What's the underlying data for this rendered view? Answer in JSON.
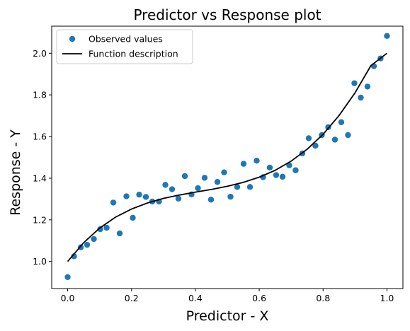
{
  "chart_data": {
    "type": "scatter",
    "title": "Predictor vs Response plot",
    "xlabel": "Predictor - X",
    "ylabel": "Response - Y",
    "xlim": [
      -0.05,
      1.05
    ],
    "ylim": [
      0.87,
      2.13
    ],
    "xticks": [
      0.0,
      0.2,
      0.4,
      0.6,
      0.8,
      1.0
    ],
    "xtick_labels": [
      "0.0",
      "0.2",
      "0.4",
      "0.6",
      "0.8",
      "1.0"
    ],
    "yticks": [
      1.0,
      1.2,
      1.4,
      1.6,
      1.8,
      2.0
    ],
    "ytick_labels": [
      "1.0",
      "1.2",
      "1.4",
      "1.6",
      "1.8",
      "2.0"
    ],
    "grid": false,
    "legend_position": "top-left",
    "series": [
      {
        "name": "Observed values",
        "kind": "scatter",
        "color": "#1f77b4",
        "x": [
          0.0,
          0.02,
          0.041,
          0.061,
          0.082,
          0.102,
          0.122,
          0.143,
          0.163,
          0.184,
          0.204,
          0.224,
          0.245,
          0.265,
          0.286,
          0.306,
          0.327,
          0.347,
          0.367,
          0.388,
          0.408,
          0.429,
          0.449,
          0.469,
          0.49,
          0.51,
          0.531,
          0.551,
          0.571,
          0.592,
          0.612,
          0.633,
          0.653,
          0.673,
          0.694,
          0.714,
          0.735,
          0.755,
          0.776,
          0.796,
          0.816,
          0.837,
          0.857,
          0.878,
          0.898,
          0.918,
          0.939,
          0.959,
          0.98,
          1.0
        ],
        "y": [
          0.925,
          1.025,
          1.068,
          1.08,
          1.108,
          1.155,
          1.162,
          1.283,
          1.135,
          1.313,
          1.21,
          1.321,
          1.31,
          1.288,
          1.288,
          1.368,
          1.347,
          1.302,
          1.41,
          1.322,
          1.352,
          1.402,
          1.297,
          1.382,
          1.428,
          1.311,
          1.358,
          1.469,
          1.358,
          1.484,
          1.405,
          1.451,
          1.415,
          1.407,
          1.462,
          1.438,
          1.519,
          1.592,
          1.556,
          1.607,
          1.645,
          1.585,
          1.669,
          1.607,
          1.856,
          1.787,
          1.84,
          1.938,
          1.975,
          2.083
        ]
      },
      {
        "name": "Function description",
        "kind": "line",
        "color": "#000000",
        "x": [
          0.0,
          0.05,
          0.1,
          0.15,
          0.2,
          0.25,
          0.3,
          0.35,
          0.4,
          0.45,
          0.5,
          0.55,
          0.6,
          0.65,
          0.7,
          0.75,
          0.8,
          0.85,
          0.9,
          0.95,
          1.0
        ],
        "y": [
          1.0,
          1.09,
          1.16,
          1.213,
          1.252,
          1.281,
          1.303,
          1.319,
          1.333,
          1.346,
          1.361,
          1.38,
          1.405,
          1.438,
          1.482,
          1.539,
          1.611,
          1.701,
          1.81,
          1.941,
          2.0
        ]
      }
    ]
  }
}
